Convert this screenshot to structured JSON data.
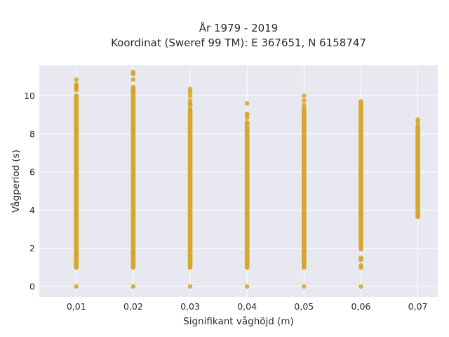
{
  "chart_data": {
    "type": "scatter",
    "title_line1": "År 1979 - 2019",
    "title_line2": "Koordinat (Sweref 99 TM): E 367651, N 6158747",
    "xlabel": "Signifikant våghöjd (m)",
    "ylabel": "Vågperiod (s)",
    "x_tick_labels": [
      "0,01",
      "0,02",
      "0,03",
      "0,04",
      "0,05",
      "0,06",
      "0,07"
    ],
    "y_tick_labels": [
      "0",
      "2",
      "4",
      "6",
      "8",
      "10"
    ],
    "x_ticks": [
      0.01,
      0.02,
      0.03,
      0.04,
      0.05,
      0.06,
      0.07
    ],
    "y_ticks": [
      0,
      2,
      4,
      6,
      8,
      10
    ],
    "xlim": [
      0.0035,
      0.0735
    ],
    "ylim": [
      -0.55,
      11.6
    ],
    "grid": true,
    "marker_color": "#d4a017",
    "background_color": "#e8e8f0",
    "columns": [
      {
        "x": 0.01,
        "band": [
          1.0,
          10.0
        ],
        "outliers": [
          0,
          10.3,
          10.4,
          10.5,
          10.6,
          10.85
        ]
      },
      {
        "x": 0.02,
        "band": [
          1.0,
          10.45
        ],
        "outliers": [
          0,
          10.85,
          11.15,
          11.25
        ]
      },
      {
        "x": 0.03,
        "band": [
          1.0,
          9.2
        ],
        "outliers": [
          0,
          9.3,
          9.5,
          9.6,
          9.75,
          10.0,
          10.2,
          10.35
        ]
      },
      {
        "x": 0.04,
        "band": [
          1.0,
          8.6
        ],
        "outliers": [
          0,
          8.85,
          9.0,
          9.05,
          9.6
        ]
      },
      {
        "x": 0.05,
        "band": [
          1.0,
          9.2
        ],
        "outliers": [
          0,
          9.35,
          9.5,
          9.75,
          10.0
        ]
      },
      {
        "x": 0.06,
        "band": [
          2.2,
          9.7
        ],
        "outliers": [
          0,
          1.0,
          1.1,
          1.4,
          1.5,
          1.95,
          2.05
        ]
      },
      {
        "x": 0.07,
        "band": [
          3.7,
          8.4
        ],
        "outliers": [
          3.65,
          8.6,
          8.75
        ]
      }
    ]
  }
}
